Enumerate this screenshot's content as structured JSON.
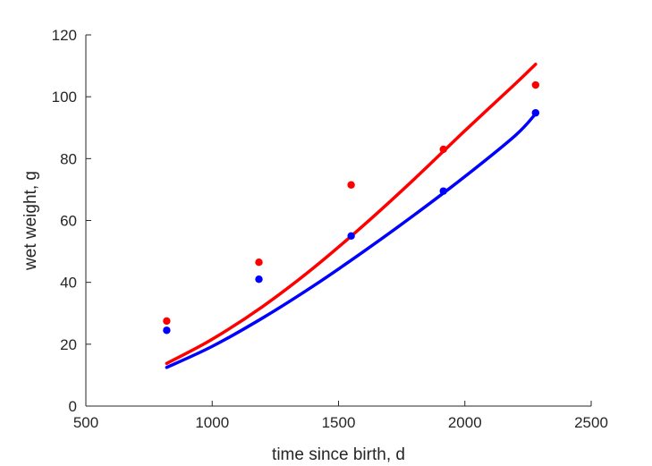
{
  "chart_data": {
    "type": "scatter",
    "title": "",
    "xlabel": "time since birth, d",
    "ylabel": "wet weight, g",
    "xlim": [
      500,
      2500
    ],
    "ylim": [
      0,
      120
    ],
    "xticks": [
      500,
      1000,
      1500,
      2000,
      2500
    ],
    "yticks": [
      0,
      20,
      40,
      60,
      80,
      100,
      120
    ],
    "grid": false,
    "legend": "none",
    "series": [
      {
        "color": "#ff0000",
        "points": {
          "x": [
            820,
            1185,
            1550,
            1915,
            2280
          ],
          "y": [
            27.5,
            46.5,
            71.5,
            83,
            103.8
          ]
        },
        "fit": {
          "x": [
            820,
            1000,
            1200,
            1400,
            1600,
            1800,
            2000,
            2200,
            2280
          ],
          "y": [
            13.8,
            21.6,
            32.2,
            44.6,
            58.5,
            73.4,
            89.0,
            104.2,
            110.5
          ]
        }
      },
      {
        "color": "#0000ff",
        "points": {
          "x": [
            820,
            1185,
            1550,
            1915,
            2280
          ],
          "y": [
            24.5,
            41,
            55,
            69.5,
            94.8
          ]
        },
        "fit": {
          "x": [
            820,
            1000,
            1200,
            1400,
            1600,
            1800,
            2000,
            2200,
            2280
          ],
          "y": [
            12.5,
            19.3,
            28.5,
            38.8,
            50.0,
            61.8,
            74.2,
            87.5,
            94.5
          ]
        }
      }
    ]
  }
}
